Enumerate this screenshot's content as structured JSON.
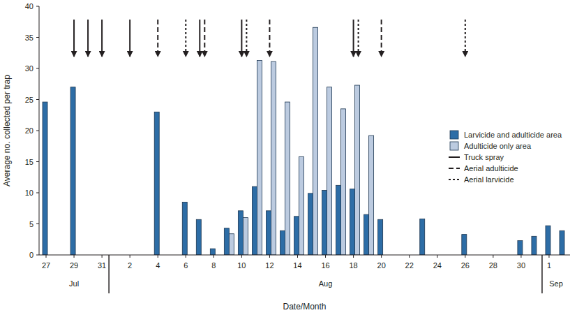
{
  "chart_data": {
    "type": "bar",
    "x_label": "Date/Month",
    "y_label": "Average no. collected per trap",
    "categories": [
      "27",
      null,
      "29",
      null,
      "31",
      null,
      "2",
      null,
      "4",
      null,
      "6",
      null,
      "8",
      null,
      "10",
      null,
      "12",
      null,
      "14",
      null,
      "16",
      null,
      "18",
      null,
      "20",
      null,
      "22",
      null,
      "24",
      null,
      "26",
      null,
      "28",
      null,
      "30",
      null,
      "1",
      null
    ],
    "months": [
      {
        "label": "Jul",
        "start": 0,
        "end": 4
      },
      {
        "label": "Aug",
        "start": 5,
        "end": 35
      },
      {
        "label": "Sep",
        "start": 36,
        "end": 37
      }
    ],
    "series": [
      {
        "name": "Larvicide and adulticide area",
        "color": "#2d6da6",
        "values": [
          24.6,
          null,
          27.0,
          null,
          null,
          null,
          null,
          null,
          23.0,
          null,
          8.5,
          5.7,
          1.0,
          4.3,
          7.1,
          11.0,
          7.1,
          3.9,
          6.2,
          9.9,
          10.4,
          11.2,
          10.6,
          6.5,
          5.7,
          null,
          null,
          5.8,
          null,
          null,
          3.3,
          null,
          null,
          null,
          2.3,
          3.0,
          4.7,
          3.9
        ]
      },
      {
        "name": "Adulticide only area",
        "color": "#bccbe0",
        "values": [
          null,
          null,
          null,
          null,
          null,
          null,
          null,
          null,
          null,
          null,
          null,
          null,
          null,
          3.4,
          6.0,
          31.3,
          31.1,
          24.6,
          15.8,
          36.6,
          27.0,
          23.5,
          27.3,
          19.2,
          null,
          null,
          null,
          null,
          null,
          null,
          null,
          null,
          null,
          null,
          null,
          null,
          null,
          null
        ]
      }
    ],
    "events": [
      {
        "name": "Truck spray",
        "line_style": "solid",
        "positions": [
          2,
          3,
          4,
          6,
          11,
          14,
          22
        ]
      },
      {
        "name": "Aerial adulticide",
        "line_style": "dashed",
        "positions": [
          8,
          11,
          16,
          24
        ]
      },
      {
        "name": "Aerial larvicide",
        "line_style": "dotted",
        "positions": [
          10,
          14,
          22,
          30
        ]
      }
    ],
    "ylim": [
      0,
      40
    ],
    "yticks": [
      0,
      5,
      10,
      15,
      20,
      25,
      30,
      35,
      40
    ],
    "grid": false,
    "legend": "right"
  }
}
